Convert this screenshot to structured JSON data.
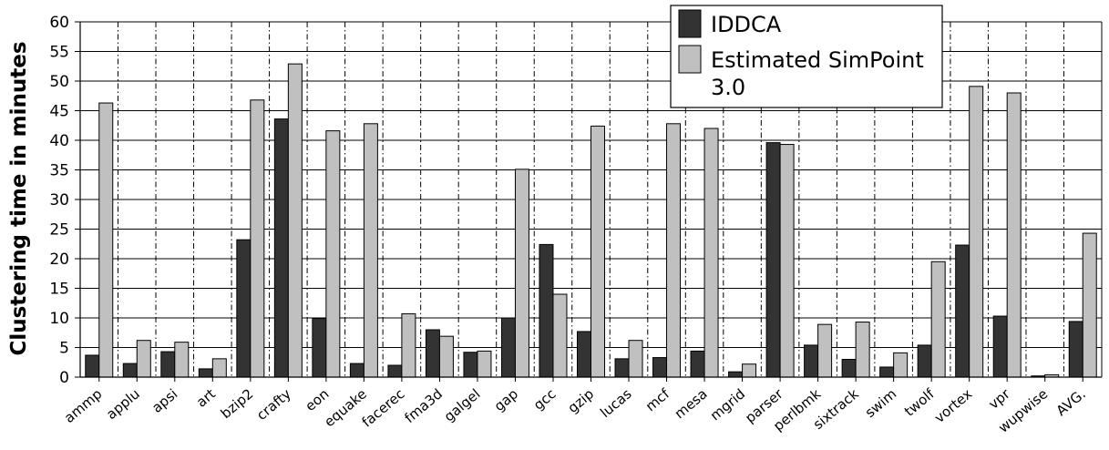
{
  "chart_data": {
    "type": "bar",
    "title": "",
    "xlabel": "",
    "ylabel": "Clustering time in minutes",
    "ylim": [
      0,
      60
    ],
    "yticks": [
      0,
      5,
      10,
      15,
      20,
      25,
      30,
      35,
      40,
      45,
      50,
      55,
      60
    ],
    "grid": true,
    "legend_position": "top-right",
    "categories": [
      "ammp",
      "applu",
      "apsi",
      "art",
      "bzip2",
      "crafty",
      "eon",
      "equake",
      "facerec",
      "fma3d",
      "galgel",
      "gap",
      "gcc",
      "gzip",
      "lucas",
      "mcf",
      "mesa",
      "mgrid",
      "parser",
      "perlbmk",
      "sixtrack",
      "swim",
      "twolf",
      "vortex",
      "vpr",
      "wupwise",
      "AVG."
    ],
    "series": [
      {
        "name": "IDDCA",
        "color": "#333333",
        "values": [
          3.7,
          2.3,
          4.3,
          1.4,
          23.2,
          43.6,
          9.9,
          2.3,
          2.0,
          8.0,
          4.2,
          10.0,
          22.4,
          7.7,
          3.1,
          3.3,
          4.4,
          0.9,
          39.6,
          5.4,
          3.0,
          1.7,
          5.4,
          22.3,
          10.3,
          0.2,
          9.4
        ]
      },
      {
        "name": "Estimated SimPoint 3.0",
        "color": "#c0c0c0",
        "values": [
          46.3,
          6.2,
          5.9,
          3.1,
          46.8,
          52.9,
          41.6,
          42.8,
          10.7,
          6.9,
          4.4,
          35.1,
          14.0,
          42.4,
          6.2,
          42.8,
          42.0,
          2.2,
          39.3,
          8.9,
          9.3,
          4.1,
          19.5,
          49.1,
          48.0,
          0.4,
          24.3
        ]
      }
    ]
  }
}
